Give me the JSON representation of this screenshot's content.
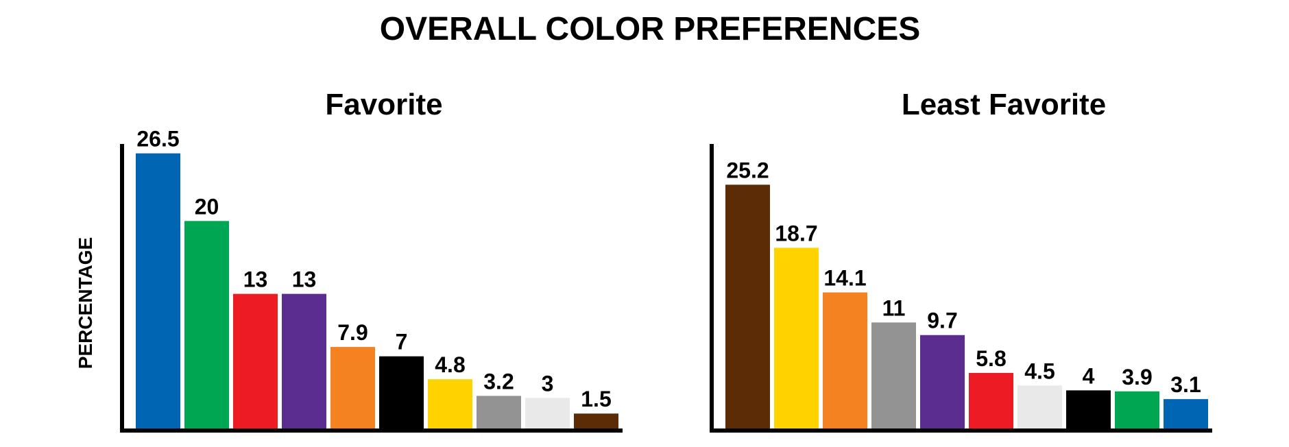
{
  "title": "OVERALL COLOR PREFERENCES",
  "chart_data": [
    {
      "type": "bar",
      "title": "Favorite",
      "ylabel": "PERCENTAGE",
      "categories": [
        null,
        null,
        null,
        null,
        null,
        null,
        null,
        null,
        null,
        null
      ],
      "values": [
        26.5,
        20,
        13,
        13,
        7.9,
        7,
        4.8,
        3.2,
        3,
        1.5
      ],
      "colors": [
        "#0066b3",
        "#00a651",
        "#ed1c24",
        "#5b2d90",
        "#f58220",
        "#000000",
        "#ffd200",
        "#939393",
        "#e8e9e8",
        "#5c2c06"
      ],
      "ylim": [
        0,
        27.4
      ]
    },
    {
      "type": "bar",
      "title": "Least Favorite",
      "categories": [
        null,
        null,
        null,
        null,
        null,
        null,
        null,
        null,
        null,
        null
      ],
      "values": [
        25.2,
        18.7,
        14.1,
        11,
        9.7,
        5.8,
        4.5,
        4,
        3.9,
        3.1
      ],
      "colors": [
        "#5c2c06",
        "#ffd200",
        "#f58220",
        "#939393",
        "#5b2d90",
        "#ed1c24",
        "#e8e9e8",
        "#000000",
        "#00a651",
        "#0066b3"
      ],
      "ylim": [
        0,
        29.4
      ]
    }
  ]
}
